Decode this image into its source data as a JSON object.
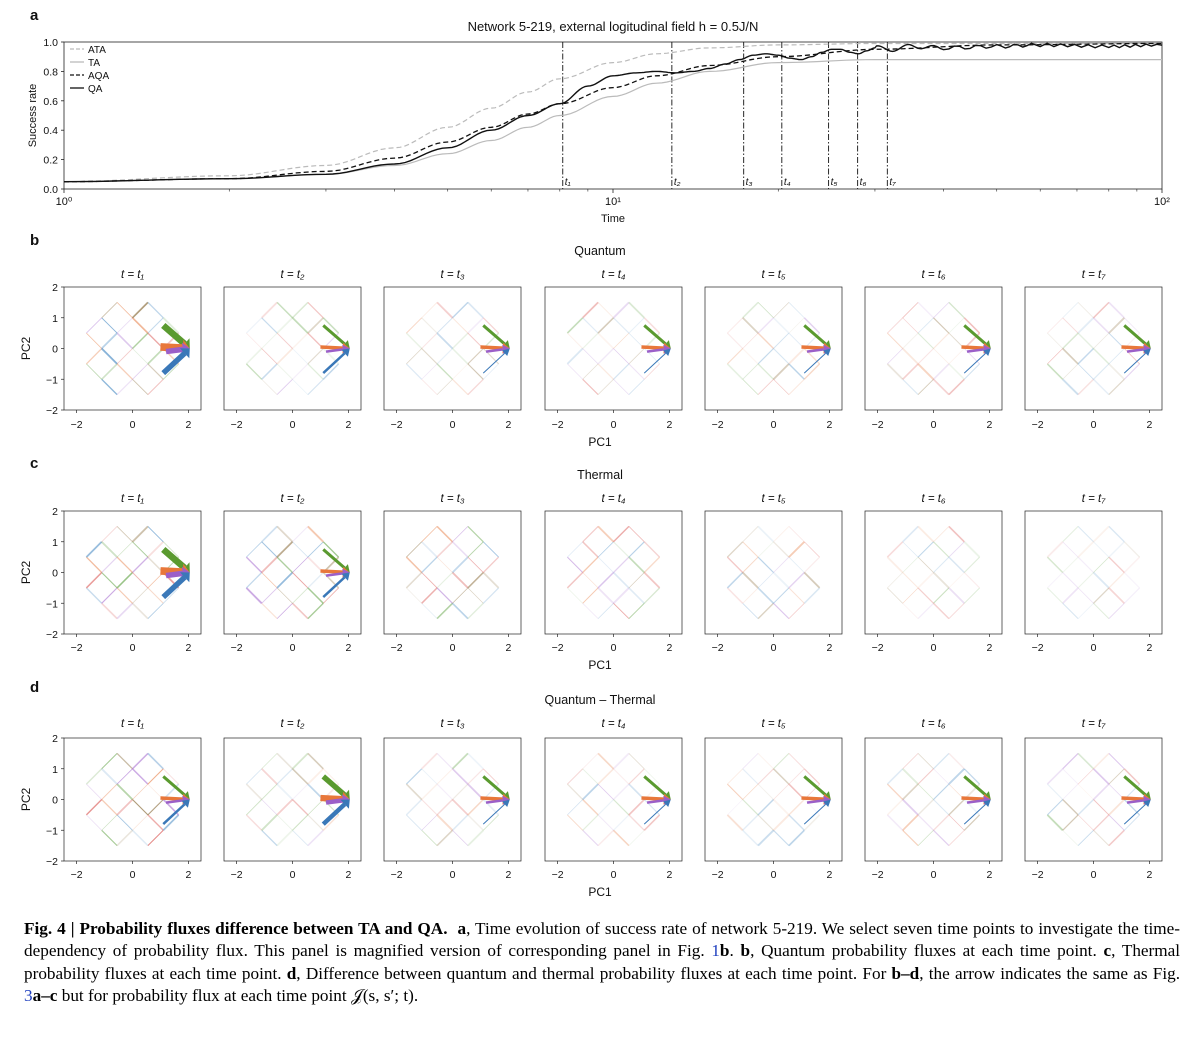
{
  "panel_a": {
    "letter": "a",
    "title": "Network 5-219, external logitudinal field h = 0.5J/N",
    "xlabel": "Time",
    "ylabel": "Success rate",
    "xticks": [
      "10⁰",
      "10¹",
      "10²"
    ],
    "yticks": [
      "0.0",
      "0.2",
      "0.4",
      "0.6",
      "0.8",
      "1.0"
    ],
    "legend": [
      {
        "label": "ATA",
        "style": "dashed",
        "color": "#bbbbbb"
      },
      {
        "label": "TA",
        "style": "solid",
        "color": "#bbbbbb"
      },
      {
        "label": "AQA",
        "style": "dashed",
        "color": "#111111"
      },
      {
        "label": "QA",
        "style": "solid",
        "color": "#111111"
      }
    ],
    "time_points": [
      {
        "label": "t₁",
        "t": 8.1
      },
      {
        "label": "t₂",
        "t": 12.8
      },
      {
        "label": "t₃",
        "t": 17.3
      },
      {
        "label": "t₄",
        "t": 20.3
      },
      {
        "label": "t₅",
        "t": 24.7
      },
      {
        "label": "t₆",
        "t": 27.9
      },
      {
        "label": "t₇",
        "t": 31.6
      }
    ]
  },
  "chart_data": {
    "type": "line",
    "x_scale": "log",
    "xlim": [
      1,
      100
    ],
    "ylim": [
      0,
      1
    ],
    "series": [
      {
        "name": "ATA",
        "x": [
          1,
          2,
          3,
          4,
          5,
          6,
          7,
          8,
          10,
          12,
          15,
          20,
          30,
          50,
          100
        ],
        "y": [
          0.05,
          0.09,
          0.16,
          0.28,
          0.42,
          0.55,
          0.66,
          0.75,
          0.86,
          0.92,
          0.96,
          0.98,
          0.99,
          0.99,
          0.99
        ]
      },
      {
        "name": "TA",
        "x": [
          1,
          2,
          3,
          4,
          5,
          6,
          7,
          8,
          10,
          12,
          15,
          20,
          30,
          50,
          100
        ],
        "y": [
          0.05,
          0.07,
          0.1,
          0.16,
          0.24,
          0.33,
          0.42,
          0.5,
          0.63,
          0.72,
          0.8,
          0.86,
          0.88,
          0.88,
          0.88
        ]
      },
      {
        "name": "AQA",
        "x": [
          1,
          2,
          3,
          4,
          5,
          6,
          7,
          8,
          10,
          12,
          15,
          20,
          30,
          50,
          100
        ],
        "y": [
          0.05,
          0.07,
          0.12,
          0.21,
          0.32,
          0.42,
          0.51,
          0.58,
          0.69,
          0.77,
          0.84,
          0.9,
          0.95,
          0.98,
          0.99
        ]
      },
      {
        "name": "QA",
        "x": [
          1,
          2,
          3,
          4,
          5,
          6,
          7,
          8,
          9,
          10,
          11,
          12,
          13,
          14,
          15,
          16,
          17,
          18,
          19,
          20,
          21,
          22,
          23,
          24,
          25,
          26,
          27,
          28,
          29,
          30,
          32,
          35,
          40,
          50,
          60,
          80,
          100
        ],
        "y": [
          0.05,
          0.07,
          0.1,
          0.17,
          0.28,
          0.4,
          0.5,
          0.58,
          0.7,
          0.77,
          0.79,
          0.8,
          0.79,
          0.8,
          0.82,
          0.85,
          0.88,
          0.91,
          0.92,
          0.91,
          0.89,
          0.88,
          0.9,
          0.93,
          0.95,
          0.95,
          0.93,
          0.92,
          0.94,
          0.96,
          0.95,
          0.97,
          0.96,
          0.97,
          0.98,
          0.97,
          0.98
        ]
      }
    ]
  },
  "rows": [
    {
      "letter": "b",
      "title": "Quantum"
    },
    {
      "letter": "c",
      "title": "Thermal"
    },
    {
      "letter": "d",
      "title": "Quantum – Thermal"
    }
  ],
  "small": {
    "col_titles": [
      "t = t₁",
      "t = t₂",
      "t = t₃",
      "t = t₄",
      "t = t₅",
      "t = t₆",
      "t = t₇"
    ],
    "xticks": [
      "−2",
      "0",
      "2"
    ],
    "yticks": [
      "2",
      "1",
      "0",
      "−1",
      "−2"
    ],
    "xlabel": "PC1",
    "ylabel": "PC2",
    "edge_colors": [
      "#4f8fc6",
      "#e8834d",
      "#6aa84f",
      "#a86fd0",
      "#d9534f",
      "#8a6d3b"
    ]
  },
  "caption": {
    "label": "Fig. 4 |  Probability fluxes difference between TA and QA.",
    "a_text": "Time evolution of success rate of network 5-219. We select seven time points to investigate the time-dependency of probability flux. This panel is magnified version of corresponding panel in Fig. ",
    "a_ref": "1",
    "b_text": "Quantum probability fluxes at each time point.",
    "c_text": "Thermal probability fluxes at each time point.",
    "d_text": "Difference between quantum and thermal probability fluxes at each time point. For ",
    "bd": "b–d",
    "d_tail": ", the arrow indicates the same as Fig. ",
    "ref3": "3",
    "ac": "a–c",
    "end": " but for probability flux at each time point 𝒥(s, s′; t)."
  }
}
